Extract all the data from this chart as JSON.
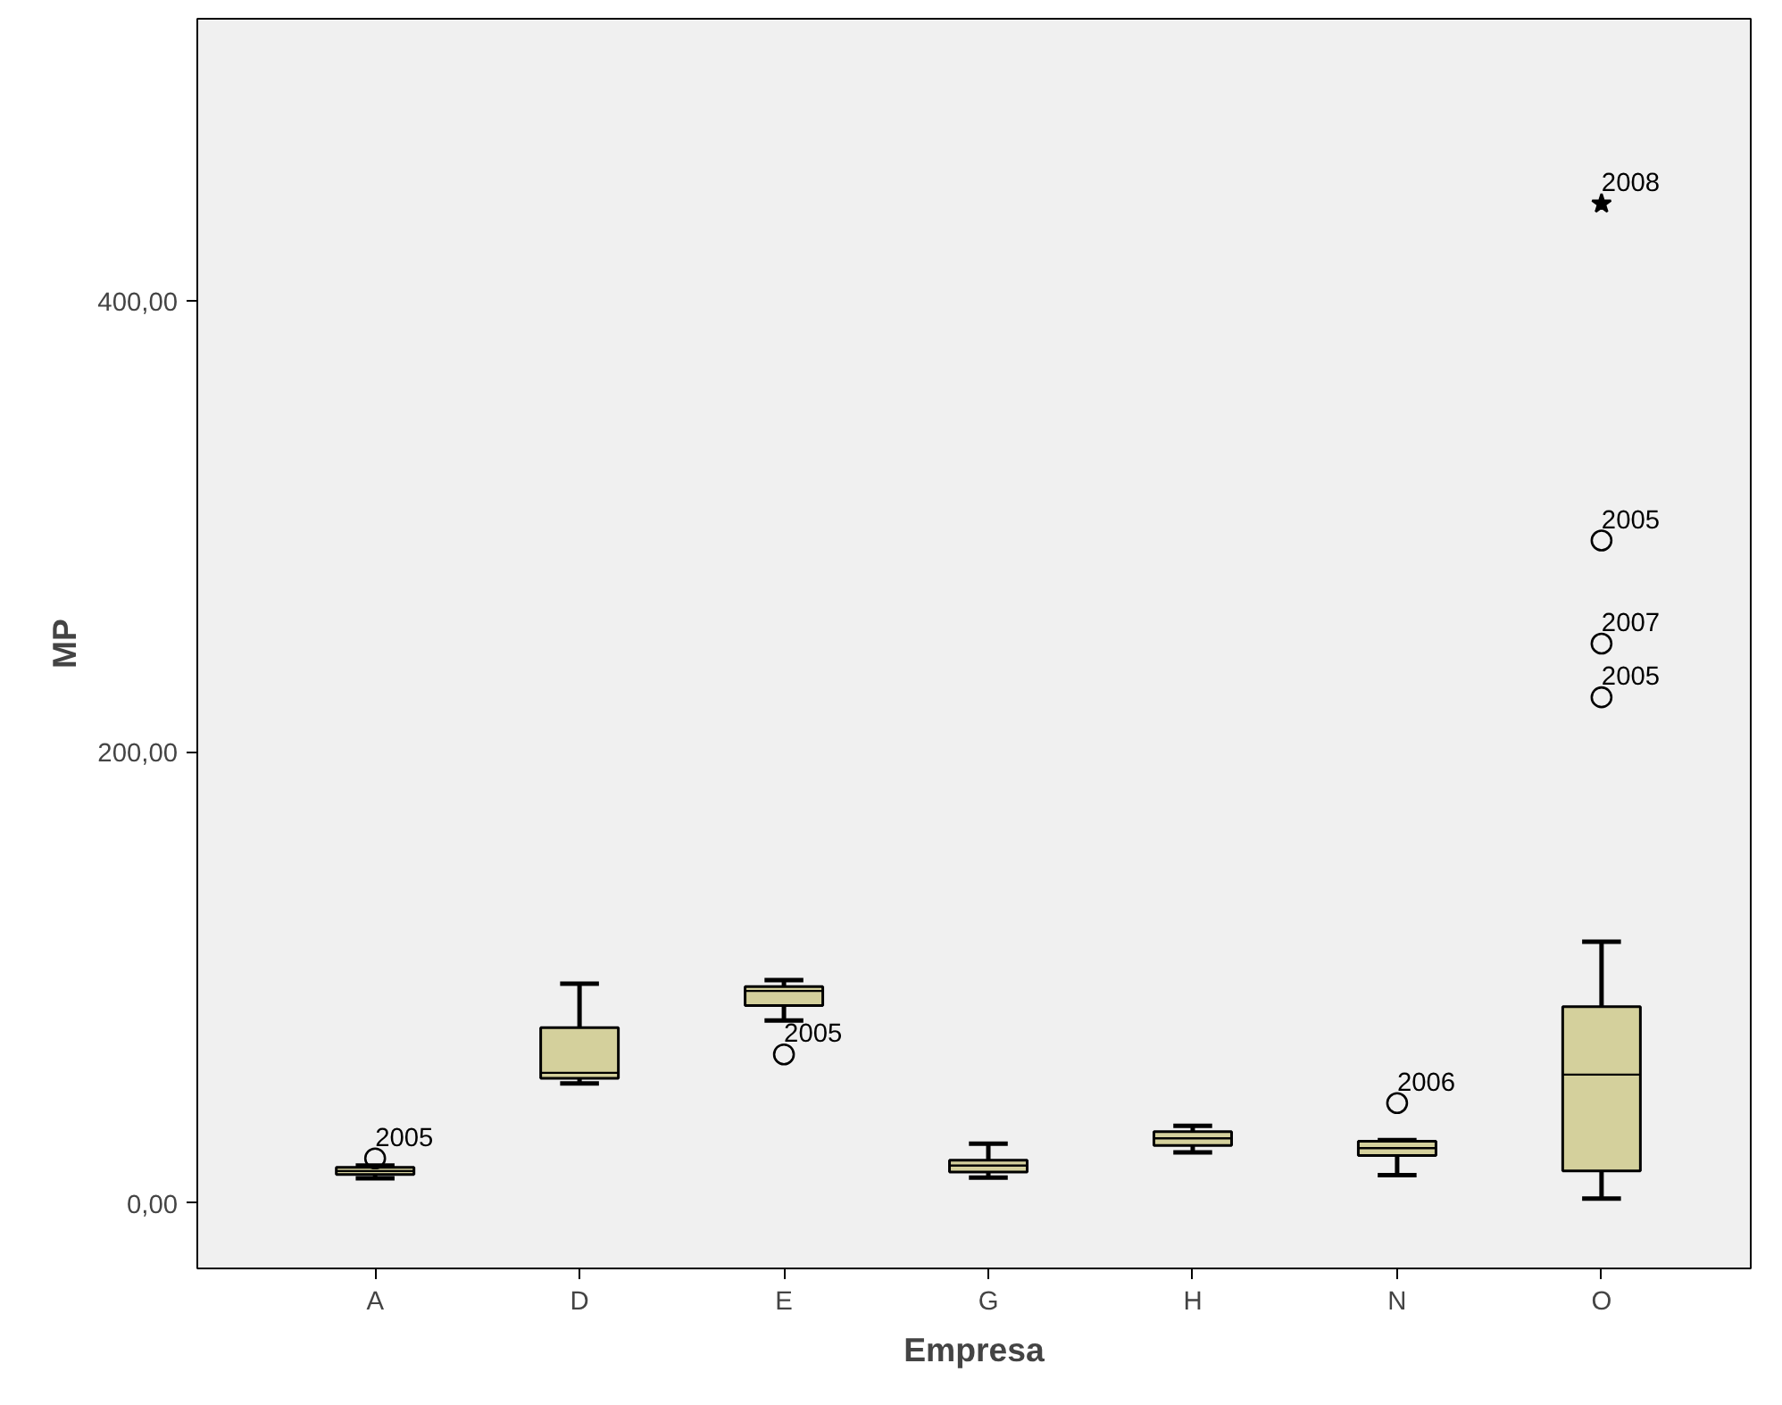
{
  "chart_data": {
    "type": "box",
    "xlabel": "Empresa",
    "ylabel": "MP",
    "categories": [
      "A",
      "D",
      "E",
      "G",
      "H",
      "N",
      "O"
    ],
    "color": "#d4d09c",
    "boxes": [
      {
        "low": 11,
        "q1": 12.6,
        "median": 14.2,
        "q3": 15.8,
        "high": 16.6
      },
      {
        "low": 53,
        "q1": 55.3,
        "median": 57.7,
        "q3": 77.7,
        "high": 97.2
      },
      {
        "low": 80.9,
        "q1": 87.5,
        "median": 94,
        "q3": 95.9,
        "high": 98.8
      },
      {
        "low": 11.3,
        "q1": 13.7,
        "median": 16.6,
        "q3": 19,
        "high": 26.3
      },
      {
        "low": 22.4,
        "q1": 25.5,
        "median": 28.7,
        "q3": 31.6,
        "high": 34.2
      },
      {
        "low": 12.4,
        "q1": 21.1,
        "median": 24.3,
        "q3": 27.4,
        "high": 27.9
      },
      {
        "low": 2,
        "q1": 14.2,
        "median": 56.9,
        "q3": 87,
        "high": 115.8
      }
    ],
    "series": [
      {
        "type": "scatter",
        "marker": "circle",
        "color": "#000000",
        "x": [
          "A",
          "E",
          "N",
          "O",
          "O",
          "O"
        ],
        "values": [
          19.8,
          65.9,
          44.3,
          224.2,
          248,
          293.7
        ]
      },
      {
        "type": "scatter",
        "marker": "star",
        "color": "#000000",
        "x": [
          "O"
        ],
        "values": [
          443
        ]
      }
    ],
    "ylim": [
      -29,
      525
    ],
    "yticks": [
      {
        "value": 0,
        "label": "0,00"
      },
      {
        "value": 200,
        "label": "200,00"
      },
      {
        "value": 400,
        "label": "400,00"
      }
    ],
    "annotations": [
      {
        "text": "2005",
        "x": "A",
        "y": 19.8
      },
      {
        "text": "2005",
        "x": "E",
        "y": 65.9
      },
      {
        "text": "2006",
        "x": "N",
        "y": 44.3
      },
      {
        "text": "2008",
        "x": "O",
        "y": 443
      },
      {
        "text": "2005",
        "x": "O",
        "y": 293.7
      },
      {
        "text": "2007",
        "x": "O",
        "y": 248
      },
      {
        "text": "2005",
        "x": "O",
        "y": 224.2
      }
    ]
  }
}
